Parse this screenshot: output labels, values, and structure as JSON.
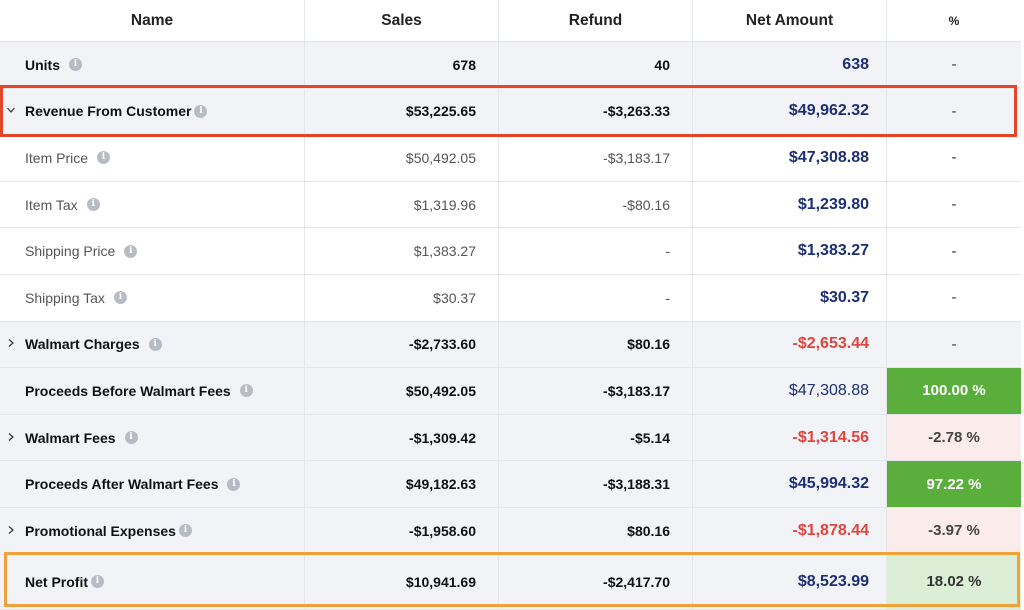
{
  "header": {
    "name": "Name",
    "sales": "Sales",
    "refund": "Refund",
    "net": "Net Amount",
    "pct": "%"
  },
  "rows": [
    {
      "name": "Units",
      "sales": "678",
      "refund": "40",
      "net": "638",
      "pct": "-"
    },
    {
      "name": "Revenue From Customer",
      "sales": "$53,225.65",
      "refund": "-$3,263.33",
      "net": "$49,962.32",
      "pct": "-"
    },
    {
      "name": "Item Price",
      "sales": "$50,492.05",
      "refund": "-$3,183.17",
      "net": "$47,308.88",
      "pct": "-"
    },
    {
      "name": "Item Tax",
      "sales": "$1,319.96",
      "refund": "-$80.16",
      "net": "$1,239.80",
      "pct": "-"
    },
    {
      "name": "Shipping Price",
      "sales": "$1,383.27",
      "refund": "-",
      "net": "$1,383.27",
      "pct": "-"
    },
    {
      "name": "Shipping Tax",
      "sales": "$30.37",
      "refund": "-",
      "net": "$30.37",
      "pct": "-"
    },
    {
      "name": "Walmart Charges",
      "sales": "-$2,733.60",
      "refund": "$80.16",
      "net": "-$2,653.44",
      "pct": "-"
    },
    {
      "name": "Proceeds Before Walmart Fees",
      "sales": "$50,492.05",
      "refund": "-$3,183.17",
      "net": "$47,308.88",
      "pct": "100.00 %"
    },
    {
      "name": "Walmart Fees",
      "sales": "-$1,309.42",
      "refund": "-$5.14",
      "net": "-$1,314.56",
      "pct": "-2.78 %"
    },
    {
      "name": "Proceeds After Walmart Fees",
      "sales": "$49,182.63",
      "refund": "-$3,188.31",
      "net": "$45,994.32",
      "pct": "97.22 %"
    },
    {
      "name": "Promotional Expenses",
      "sales": "-$1,958.60",
      "refund": "$80.16",
      "net": "-$1,878.44",
      "pct": "-3.97 %"
    },
    {
      "name": "Net Profit",
      "sales": "$10,941.69",
      "refund": "-$2,417.70",
      "net": "$8,523.99",
      "pct": "18.02 %"
    }
  ],
  "colors": {
    "net_positive": "#1c2f74",
    "net_negative": "#e0443e",
    "pct_green": "#5aaf3c",
    "pct_pink": "#fbeceb",
    "pct_light_green": "#dcefd6",
    "highlight_red": "#e2462a",
    "highlight_orange": "#f0a23a"
  }
}
